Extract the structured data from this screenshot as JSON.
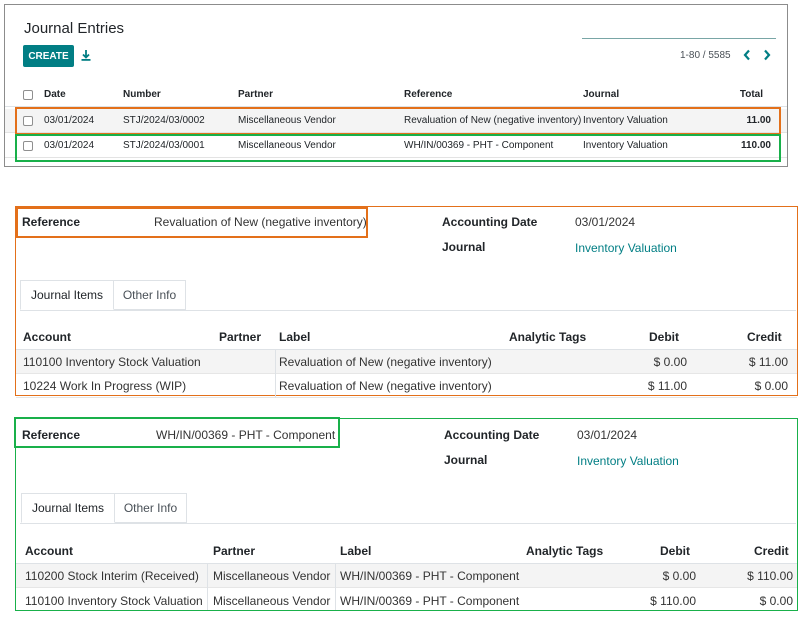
{
  "list": {
    "title": "Journal Entries",
    "create_label": "CREATE",
    "pager": "1-80 / 5585",
    "columns": [
      "Date",
      "Number",
      "Partner",
      "Reference",
      "Journal",
      "Total"
    ],
    "rows": [
      {
        "date": "03/01/2024",
        "number": "STJ/2024/03/0002",
        "partner": "Miscellaneous Vendor",
        "reference": "Revaluation of New (negative inventory)",
        "journal": "Inventory Valuation",
        "total": "11.00"
      },
      {
        "date": "03/01/2024",
        "number": "STJ/2024/03/0001",
        "partner": "Miscellaneous Vendor",
        "reference": "WH/IN/00369 - PHT - Component",
        "journal": "Inventory Valuation",
        "total": "110.00"
      }
    ]
  },
  "form1": {
    "reference_label": "Reference",
    "reference_value": "Revaluation of New (negative inventory)",
    "accounting_date_label": "Accounting Date",
    "accounting_date_value": "03/01/2024",
    "journal_label": "Journal",
    "journal_value": "Inventory Valuation",
    "tabs": [
      "Journal Items",
      "Other Info"
    ],
    "columns": [
      "Account",
      "Partner",
      "Label",
      "Analytic Tags",
      "Debit",
      "Credit"
    ],
    "rows": [
      {
        "account": "110100 Inventory Stock Valuation",
        "partner": "",
        "label": "Revaluation of New (negative inventory)",
        "debit": "$ 0.00",
        "credit": "$ 11.00"
      },
      {
        "account": "10224 Work In Progress (WIP)",
        "partner": "",
        "label": "Revaluation of New (negative inventory)",
        "debit": "$ 11.00",
        "credit": "$ 0.00"
      }
    ]
  },
  "form2": {
    "reference_label": "Reference",
    "reference_value": "WH/IN/00369 - PHT - Component",
    "accounting_date_label": "Accounting Date",
    "accounting_date_value": "03/01/2024",
    "journal_label": "Journal",
    "journal_value": "Inventory Valuation",
    "tabs": [
      "Journal Items",
      "Other Info"
    ],
    "columns": [
      "Account",
      "Partner",
      "Label",
      "Analytic Tags",
      "Debit",
      "Credit"
    ],
    "rows": [
      {
        "account": "110200 Stock Interim (Received)",
        "partner": "Miscellaneous Vendor",
        "label": "WH/IN/00369 - PHT - Component",
        "debit": "$ 0.00",
        "credit": "$ 110.00"
      },
      {
        "account": "110100 Inventory Stock Valuation",
        "partner": "Miscellaneous Vendor",
        "label": "WH/IN/00369 - PHT - Component",
        "debit": "$ 110.00",
        "credit": "$ 0.00"
      }
    ]
  },
  "colors": {
    "primary": "#017e84",
    "highlight_orange": "#e3701a",
    "highlight_green": "#19b04a"
  },
  "icons": [
    "download-icon",
    "chevron-left-icon",
    "chevron-right-icon",
    "checkbox-icon"
  ]
}
